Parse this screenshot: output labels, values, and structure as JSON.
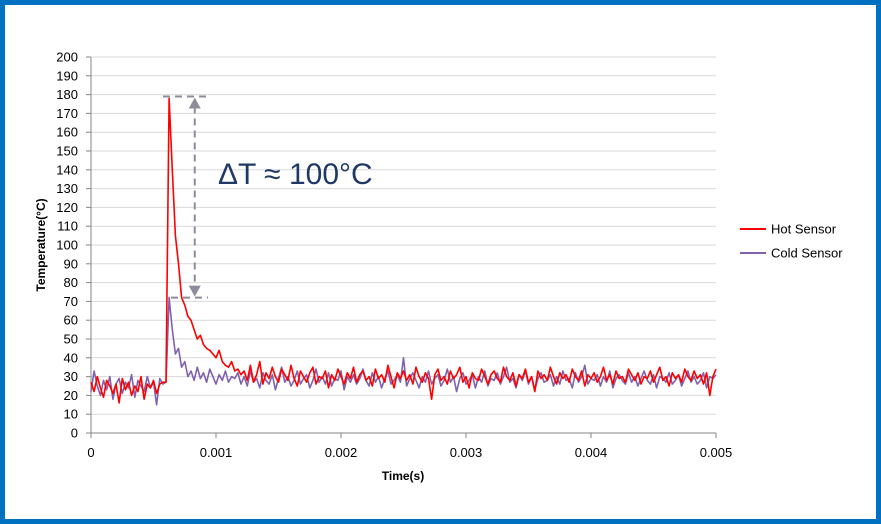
{
  "chart_data": {
    "type": "line",
    "title": "",
    "xlabel": "Time(s)",
    "ylabel": "Temperature(°C)",
    "xlim": [
      0,
      0.005
    ],
    "ylim": [
      0,
      200
    ],
    "x_ticks": [
      "0",
      "0.001",
      "0.002",
      "0.003",
      "0.004",
      "0.005"
    ],
    "y_ticks": [
      "0",
      "10",
      "20",
      "30",
      "40",
      "50",
      "60",
      "70",
      "80",
      "90",
      "100",
      "110",
      "120",
      "130",
      "140",
      "150",
      "160",
      "170",
      "180",
      "190",
      "200"
    ],
    "grid": "horizontal",
    "legend_position": "right",
    "x_start": 0,
    "x_step": 2.5e-05,
    "series": [
      {
        "name": "Hot Sensor",
        "color": "#FF0000",
        "values": [
          27,
          22,
          30,
          24,
          19,
          28,
          25,
          21,
          26,
          16,
          29,
          23,
          27,
          20,
          25,
          22,
          30,
          18,
          26,
          24,
          28,
          21,
          26,
          27,
          27,
          178,
          140,
          105,
          90,
          72,
          68,
          62,
          60,
          55,
          50,
          52,
          47,
          45,
          44,
          42,
          40,
          44,
          38,
          36,
          35,
          38,
          33,
          34,
          31,
          33,
          28,
          36,
          27,
          31,
          38,
          26,
          32,
          29,
          35,
          30,
          27,
          34,
          31,
          28,
          36,
          29,
          25,
          33,
          30,
          27,
          32,
          35,
          26,
          30,
          29,
          33,
          24,
          31,
          28,
          34,
          30,
          26,
          32,
          29,
          35,
          27,
          31,
          33,
          28,
          30,
          25,
          34,
          29,
          31,
          27,
          36,
          30,
          24,
          32,
          29,
          33,
          28,
          31,
          26,
          35,
          30,
          27,
          32,
          29,
          18,
          31,
          34,
          28,
          30,
          26,
          33,
          29,
          31,
          35,
          27,
          30,
          24,
          32,
          29,
          28,
          34,
          30,
          26,
          31,
          33,
          29,
          27,
          35,
          30,
          28,
          32,
          25,
          31,
          29,
          34,
          27,
          30,
          22,
          33,
          29,
          31,
          28,
          35,
          30,
          26,
          32,
          29,
          31,
          27,
          34,
          30,
          28,
          33,
          25,
          31,
          29,
          32,
          27,
          30,
          35,
          28,
          31,
          26,
          33,
          29,
          30,
          27,
          34,
          31,
          28,
          32,
          26,
          30,
          29,
          33,
          27,
          31,
          35,
          28,
          30,
          25,
          32,
          29,
          31,
          27,
          34,
          30,
          28,
          33,
          29,
          31,
          26,
          32,
          20,
          30,
          34
        ]
      },
      {
        "name": "Cold Sensor",
        "color": "#7F62AE",
        "values": [
          22,
          33,
          25,
          20,
          28,
          23,
          30,
          18,
          26,
          29,
          21,
          27,
          24,
          31,
          19,
          28,
          25,
          22,
          30,
          24,
          27,
          15,
          29,
          26,
          27,
          72,
          55,
          42,
          45,
          35,
          38,
          30,
          33,
          28,
          35,
          29,
          32,
          27,
          34,
          30,
          26,
          31,
          28,
          33,
          27,
          30,
          29,
          32,
          26,
          30,
          25,
          33,
          27,
          29,
          24,
          32,
          28,
          26,
          31,
          23,
          29,
          35,
          27,
          30,
          25,
          28,
          33,
          26,
          29,
          31,
          24,
          28,
          34,
          27,
          30,
          26,
          32,
          25,
          29,
          28,
          33,
          23,
          30,
          27,
          31,
          26,
          29,
          34,
          28,
          25,
          32,
          27,
          30,
          24,
          29,
          33,
          26,
          28,
          31,
          27,
          40,
          25,
          29,
          32,
          28,
          24,
          30,
          27,
          33,
          26,
          29,
          31,
          25,
          28,
          34,
          27,
          30,
          22,
          29,
          32,
          26,
          28,
          31,
          24,
          30,
          27,
          33,
          25,
          29,
          28,
          32,
          26,
          30,
          35,
          27,
          29,
          24,
          31,
          28,
          33,
          26,
          30,
          23,
          29,
          32,
          27,
          28,
          31,
          25,
          30,
          26,
          33,
          28,
          29,
          24,
          32,
          27,
          30,
          36,
          26,
          29,
          28,
          31,
          25,
          30,
          27,
          33,
          24,
          29,
          31,
          28,
          26,
          32,
          27,
          30,
          25,
          29,
          33,
          28,
          26,
          31,
          24,
          30,
          29,
          27,
          32,
          26,
          28,
          31,
          25,
          29,
          33,
          27,
          30,
          26,
          28,
          32,
          24,
          30,
          29,
          31
        ]
      }
    ],
    "annotation": {
      "text": "ΔT ≈ 100°C",
      "color": "#1F3864",
      "arrow_x": 0.00083,
      "from": 179,
      "to": 72
    }
  }
}
